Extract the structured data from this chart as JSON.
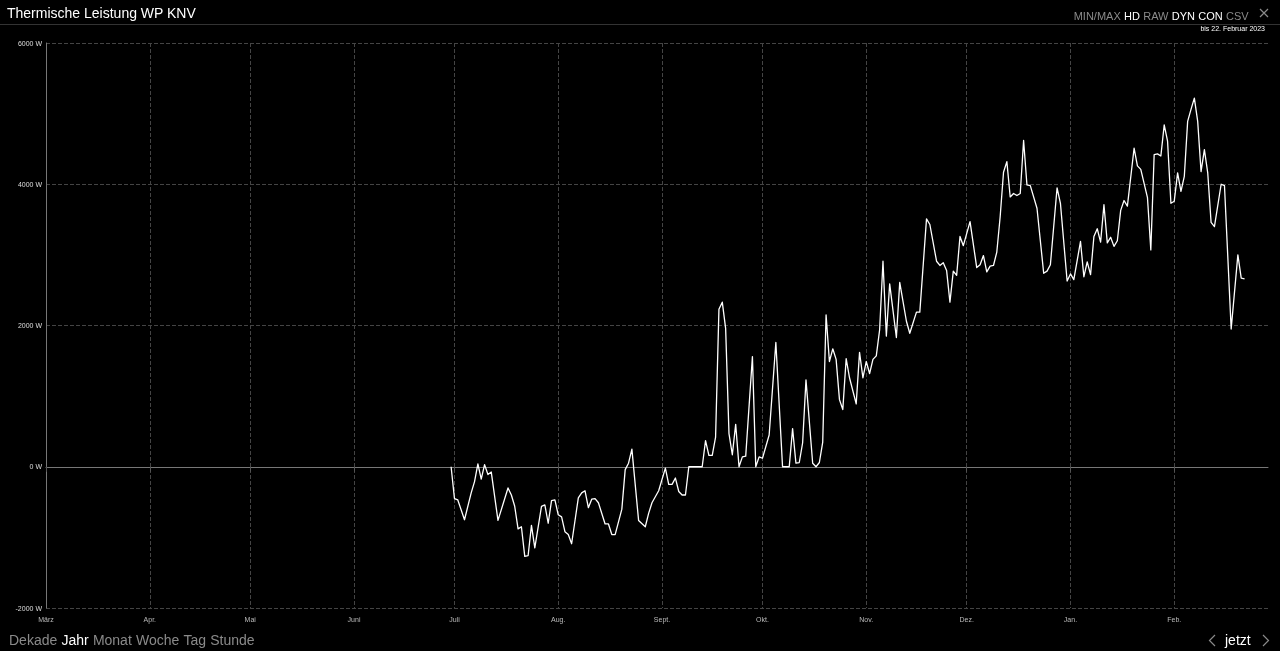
{
  "chart_data": {
    "type": "line",
    "title": "Thermische Leistung WP KNV",
    "subtitle": "bis 22. Februar 2023",
    "annotations": [
      "MIN/MAX",
      "HD",
      "RAW",
      "DYN",
      "CON",
      "CSV",
      "Dekade",
      "Jahr",
      "Monat",
      "Woche",
      "Tag",
      "Stunde",
      "jetzt"
    ],
    "xlim": [
      "2022-03-01",
      "2023-03-01"
    ],
    "xticks": [
      {
        "value": "2022-03-01",
        "label": "März"
      },
      {
        "value": "2022-04-01",
        "label": "Apr."
      },
      {
        "value": "2022-05-01",
        "label": "Mai"
      },
      {
        "value": "2022-06-01",
        "label": "Juni"
      },
      {
        "value": "2022-07-01",
        "label": "Juli"
      },
      {
        "value": "2022-08-01",
        "label": "Aug."
      },
      {
        "value": "2022-09-01",
        "label": "Sept."
      },
      {
        "value": "2022-10-01",
        "label": "Okt."
      },
      {
        "value": "2022-11-01",
        "label": "Nov."
      },
      {
        "value": "2022-12-01",
        "label": "Dez."
      },
      {
        "value": "2023-01-01",
        "label": "Jan."
      },
      {
        "value": "2023-02-01",
        "label": "Feb."
      }
    ],
    "ylim": [
      -2000,
      6000
    ],
    "yticks": [
      {
        "value": -2000,
        "label": "-2000 W"
      },
      {
        "value": 0,
        "label": "0 W"
      },
      {
        "value": 2000,
        "label": "2000 W"
      },
      {
        "value": 4000,
        "label": "4000 W"
      },
      {
        "value": 6000,
        "label": "6000 W"
      }
    ],
    "grid": true,
    "marker": "none",
    "line_style": "solid",
    "x": [
      "2022-06-30",
      "2022-07-01",
      "2022-07-02",
      "2022-07-04",
      "2022-07-06",
      "2022-07-07",
      "2022-07-08",
      "2022-07-09",
      "2022-07-10",
      "2022-07-11",
      "2022-07-12",
      "2022-07-14",
      "2022-07-17",
      "2022-07-18",
      "2022-07-19",
      "2022-07-20",
      "2022-07-21",
      "2022-07-22",
      "2022-07-23",
      "2022-07-24",
      "2022-07-25",
      "2022-07-27",
      "2022-07-28",
      "2022-07-29",
      "2022-07-30",
      "2022-07-31",
      "2022-08-01",
      "2022-08-02",
      "2022-08-03",
      "2022-08-04",
      "2022-08-05",
      "2022-08-07",
      "2022-08-08",
      "2022-08-09",
      "2022-08-10",
      "2022-08-11",
      "2022-08-12",
      "2022-08-13",
      "2022-08-15",
      "2022-08-16",
      "2022-08-17",
      "2022-08-18",
      "2022-08-20",
      "2022-08-21",
      "2022-08-22",
      "2022-08-23",
      "2022-08-25",
      "2022-08-27",
      "2022-08-28",
      "2022-08-29",
      "2022-08-31",
      "2022-09-02",
      "2022-09-03",
      "2022-09-04",
      "2022-09-05",
      "2022-09-06",
      "2022-09-07",
      "2022-09-08",
      "2022-09-09",
      "2022-09-13",
      "2022-09-14",
      "2022-09-15",
      "2022-09-16",
      "2022-09-17",
      "2022-09-18",
      "2022-09-19",
      "2022-09-20",
      "2022-09-21",
      "2022-09-22",
      "2022-09-23",
      "2022-09-24",
      "2022-09-25",
      "2022-09-26",
      "2022-09-28",
      "2022-09-29",
      "2022-09-30",
      "2022-10-01",
      "2022-10-03",
      "2022-10-05",
      "2022-10-07",
      "2022-10-09",
      "2022-10-10",
      "2022-10-11",
      "2022-10-12",
      "2022-10-13",
      "2022-10-14",
      "2022-10-16",
      "2022-10-17",
      "2022-10-18",
      "2022-10-19",
      "2022-10-20",
      "2022-10-21",
      "2022-10-22",
      "2022-10-23",
      "2022-10-24",
      "2022-10-25",
      "2022-10-26",
      "2022-10-27",
      "2022-10-29",
      "2022-10-30",
      "2022-10-31",
      "2022-11-01",
      "2022-11-02",
      "2022-11-03",
      "2022-11-04",
      "2022-11-05",
      "2022-11-06",
      "2022-11-07",
      "2022-11-08",
      "2022-11-10",
      "2022-11-11",
      "2022-11-13",
      "2022-11-14",
      "2022-11-16",
      "2022-11-17",
      "2022-11-19",
      "2022-11-20",
      "2022-11-22",
      "2022-11-23",
      "2022-11-24",
      "2022-11-25",
      "2022-11-26",
      "2022-11-27",
      "2022-11-28",
      "2022-11-29",
      "2022-11-30",
      "2022-12-02",
      "2022-12-04",
      "2022-12-05",
      "2022-12-06",
      "2022-12-07",
      "2022-12-08",
      "2022-12-09",
      "2022-12-10",
      "2022-12-11",
      "2022-12-12",
      "2022-12-13",
      "2022-12-14",
      "2022-12-15",
      "2022-12-16",
      "2022-12-17",
      "2022-12-18",
      "2022-12-19",
      "2022-12-20",
      "2022-12-22",
      "2022-12-24",
      "2022-12-25",
      "2022-12-26",
      "2022-12-28",
      "2022-12-29",
      "2022-12-31",
      "2023-01-01",
      "2023-01-02",
      "2023-01-04",
      "2023-01-05",
      "2023-01-06",
      "2023-01-07",
      "2023-01-08",
      "2023-01-09",
      "2023-01-10",
      "2023-01-11",
      "2023-01-12",
      "2023-01-13",
      "2023-01-14",
      "2023-01-15",
      "2023-01-16",
      "2023-01-17",
      "2023-01-18",
      "2023-01-20",
      "2023-01-21",
      "2023-01-22",
      "2023-01-24",
      "2023-01-25",
      "2023-01-26",
      "2023-01-27",
      "2023-01-28",
      "2023-01-29",
      "2023-01-30",
      "2023-01-31",
      "2023-02-01",
      "2023-02-02",
      "2023-02-03",
      "2023-02-04",
      "2023-02-05",
      "2023-02-06",
      "2023-02-07",
      "2023-02-08",
      "2023-02-09",
      "2023-02-10",
      "2023-02-11",
      "2023-02-12",
      "2023-02-13",
      "2023-02-15",
      "2023-02-16",
      "2023-02-18",
      "2023-02-20",
      "2023-02-21",
      "2023-02-22"
    ],
    "series": [
      {
        "color": "#ffffff",
        "values": [
          0,
          -450,
          -470,
          -750,
          -370,
          -210,
          40,
          -175,
          30,
          -110,
          -75,
          -760,
          -300,
          -400,
          -560,
          -880,
          -850,
          -1270,
          -1260,
          -830,
          -1150,
          -560,
          -540,
          -800,
          -480,
          -470,
          -680,
          -710,
          -920,
          -960,
          -1090,
          -440,
          -370,
          -340,
          -580,
          -460,
          -450,
          -510,
          -810,
          -810,
          -960,
          -960,
          -600,
          -40,
          50,
          250,
          -760,
          -850,
          -660,
          -510,
          -340,
          -20,
          -250,
          -250,
          -160,
          -350,
          -400,
          -400,
          0,
          0,
          370,
          160,
          160,
          420,
          2230,
          2330,
          1960,
          470,
          170,
          600,
          0,
          140,
          150,
          1560,
          0,
          140,
          120,
          450,
          1760,
          0,
          0,
          540,
          50,
          60,
          340,
          1230,
          50,
          0,
          60,
          350,
          2150,
          1490,
          1670,
          1520,
          950,
          810,
          1530,
          1260,
          890,
          1620,
          1260,
          1490,
          1320,
          1520,
          1570,
          1940,
          2910,
          1850,
          2590,
          1830,
          2610,
          2060,
          1890,
          2190,
          2190,
          3510,
          3430,
          2910,
          2850,
          2890,
          2780,
          2330,
          2770,
          2710,
          3260,
          3130,
          3470,
          2820,
          2860,
          2990,
          2760,
          2840,
          2850,
          3040,
          3540,
          4170,
          4320,
          3820,
          3870,
          3840,
          3870,
          4620,
          3990,
          3980,
          3660,
          2740,
          2770,
          2860,
          3950,
          3730,
          2630,
          2730,
          2650,
          3190,
          2690,
          2900,
          2720,
          3260,
          3370,
          3180,
          3710,
          3170,
          3250,
          3120,
          3200,
          3630,
          3770,
          3690,
          4510,
          4260,
          4210,
          3810,
          3070,
          4420,
          4430,
          4400,
          4840,
          4610,
          3730,
          3760,
          4160,
          3900,
          4110,
          4890,
          5060,
          5220,
          4890,
          4180,
          4490,
          4160,
          3460,
          3400,
          4000,
          3980,
          1950,
          3000,
          2670,
          2660
        ]
      }
    ]
  }
}
